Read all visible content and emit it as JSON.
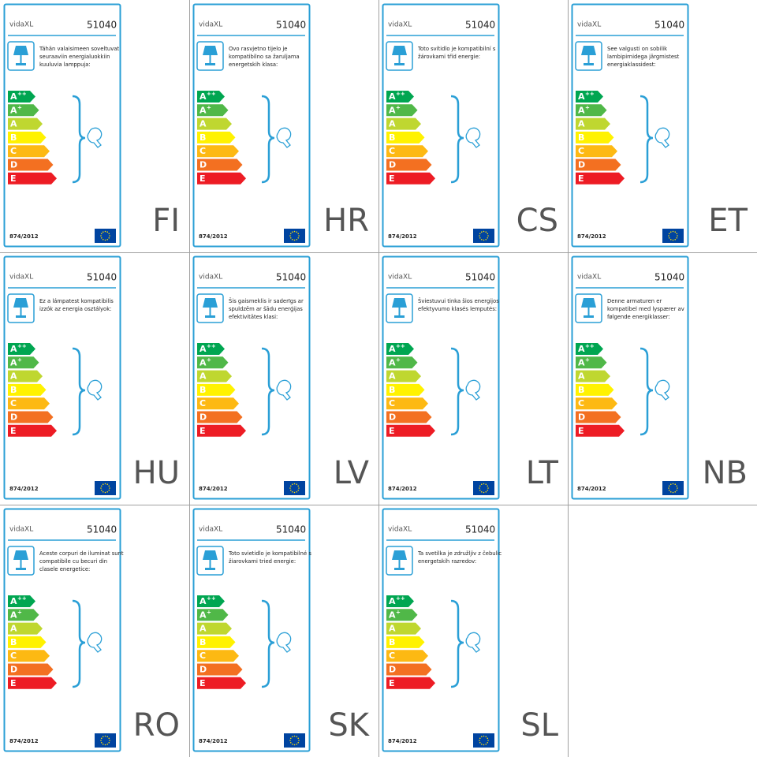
{
  "brand": "vidaXL",
  "model": "51040",
  "regulation": "874/2012",
  "energy_classes": [
    {
      "letter": "A",
      "sup": "++"
    },
    {
      "letter": "A",
      "sup": "+"
    },
    {
      "letter": "A"
    },
    {
      "letter": "B"
    },
    {
      "letter": "C"
    },
    {
      "letter": "D"
    },
    {
      "letter": "E"
    }
  ],
  "panels": [
    {
      "code": "FI",
      "text": [
        "Tähän valaisimeen soveltuvat",
        "seuraaviin energialuokkiin",
        "kuuluvia lamppuja:"
      ]
    },
    {
      "code": "HR",
      "text": [
        "Ovo rasvjetno tijelo je",
        "kompatibilno sa žaruljama",
        "energetskih klasa:"
      ]
    },
    {
      "code": "CS",
      "text": [
        "Toto svítidlo je kompatibilní s",
        "žárovkami tříd energie:"
      ]
    },
    {
      "code": "ET",
      "text": [
        "See valgusti on sobilik",
        "lambipirnidega järgmistest",
        "energiaklassidest:"
      ]
    },
    {
      "code": "HU",
      "text": [
        "Ez a lámpatest kompatibilis",
        "izzók az energia osztályok:"
      ]
    },
    {
      "code": "LV",
      "text": [
        "Šis gaismeklis ir saderīgs ar",
        "spuldzēm ar šādu enerģijas",
        "efektivitātes klasi:"
      ]
    },
    {
      "code": "LT",
      "text": [
        "Šviestuvui tinka šios energijos",
        "efektyvumo klasės lemputės:"
      ]
    },
    {
      "code": "NB",
      "text": [
        "Denne armaturen er",
        "kompatibel med lyspærer av",
        "følgende energiklasser:"
      ]
    },
    {
      "code": "RO",
      "text": [
        "Aceste corpuri de iluminat sunt",
        "compatibile cu becuri din",
        "clasele energetice:"
      ]
    },
    {
      "code": "SK",
      "text": [
        "Toto svietidlo je kompatibilné s",
        "žiarovkami tried energie:"
      ]
    },
    {
      "code": "SL",
      "text": [
        "Ta svetilka je združljiv z čebulic",
        "energetskih razredov:"
      ]
    }
  ]
}
